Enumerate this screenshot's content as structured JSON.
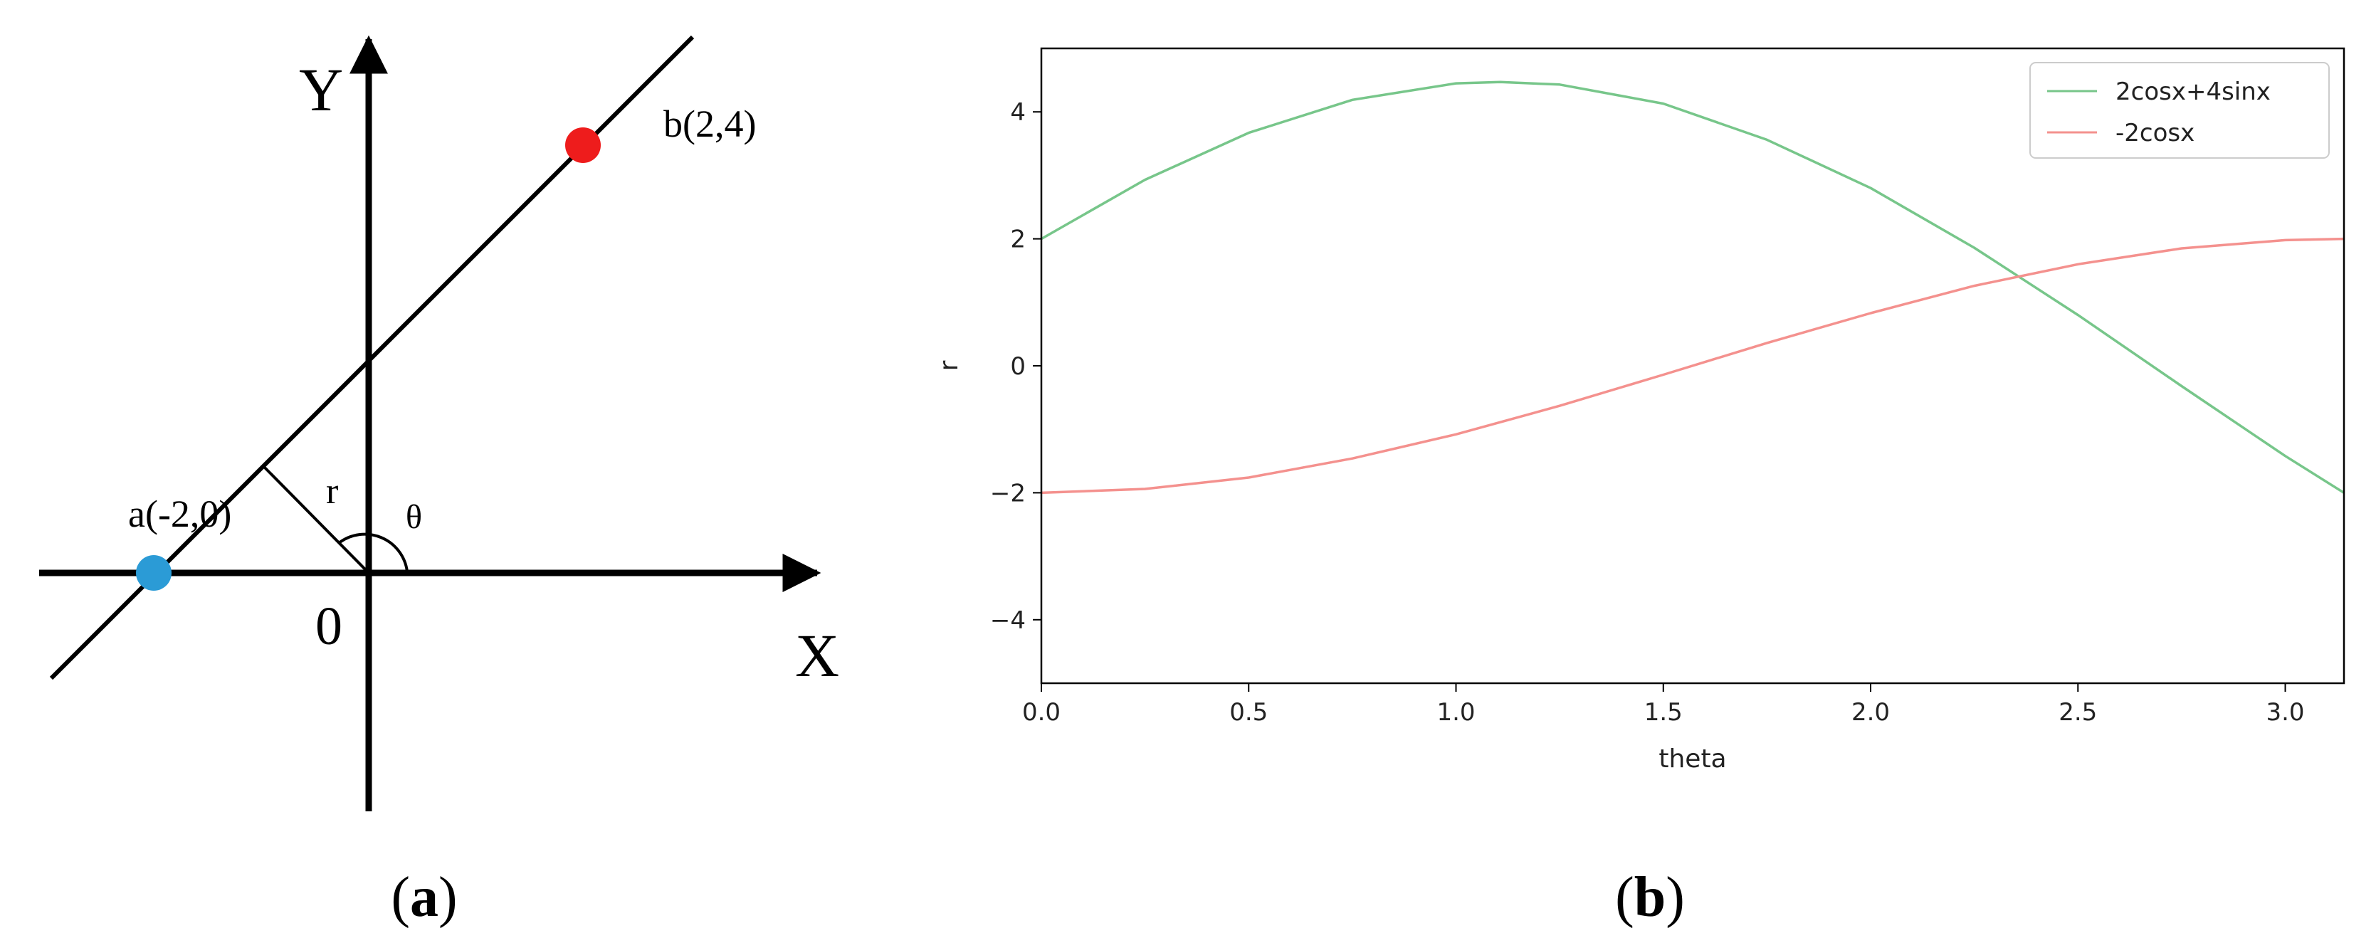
{
  "panel_a": {
    "caption_open": "(",
    "caption_letter": "a",
    "caption_close": ")",
    "x_axis_label": "X",
    "y_axis_label": "Y",
    "origin_label": "0",
    "r_label": "r",
    "theta_label": "θ",
    "point_a": {
      "label": "a(-2,0)",
      "x": -2,
      "y": 0,
      "color": "#2b9bd6"
    },
    "point_b": {
      "label": "b(2,4)",
      "x": 2,
      "y": 4,
      "color": "#ee1c1c"
    }
  },
  "panel_b": {
    "caption_open": "(",
    "caption_letter": "b",
    "caption_close": ")"
  },
  "chart_data": {
    "type": "line",
    "title": "",
    "xlabel": "theta",
    "ylabel": "r",
    "xlim": [
      0,
      3.14159
    ],
    "ylim": [
      -5,
      5
    ],
    "x_ticks": [
      0.0,
      0.5,
      1.0,
      1.5,
      2.0,
      2.5,
      3.0
    ],
    "x_tick_labels": [
      "0.0",
      "0.5",
      "1.0",
      "1.5",
      "2.0",
      "2.5",
      "3.0"
    ],
    "y_ticks": [
      4,
      2,
      0,
      -2,
      -4
    ],
    "y_tick_labels": [
      "4",
      "2",
      "0",
      "−2",
      "−4"
    ],
    "grid": false,
    "legend_position": "top-right",
    "series": [
      {
        "name": "2cosx+4sinx",
        "color": "#77c68a",
        "x": [
          0.0,
          0.25,
          0.5,
          0.75,
          1.0,
          1.107,
          1.25,
          1.5,
          1.75,
          2.0,
          2.25,
          2.356,
          2.5,
          2.75,
          3.0,
          3.14159
        ],
        "y": [
          2.0,
          2.93,
          3.67,
          4.19,
          4.45,
          4.47,
          4.43,
          4.13,
          3.56,
          2.8,
          1.86,
          1.41,
          0.8,
          -0.32,
          -1.42,
          -2.0
        ]
      },
      {
        "name": "-2cosx",
        "color": "#f4918e",
        "x": [
          0.0,
          0.25,
          0.5,
          0.75,
          1.0,
          1.25,
          1.5,
          1.75,
          2.0,
          2.25,
          2.5,
          2.75,
          3.0,
          3.14159
        ],
        "y": [
          -2.0,
          -1.94,
          -1.76,
          -1.46,
          -1.08,
          -0.63,
          -0.14,
          0.36,
          0.83,
          1.26,
          1.6,
          1.85,
          1.98,
          2.0
        ]
      }
    ]
  }
}
